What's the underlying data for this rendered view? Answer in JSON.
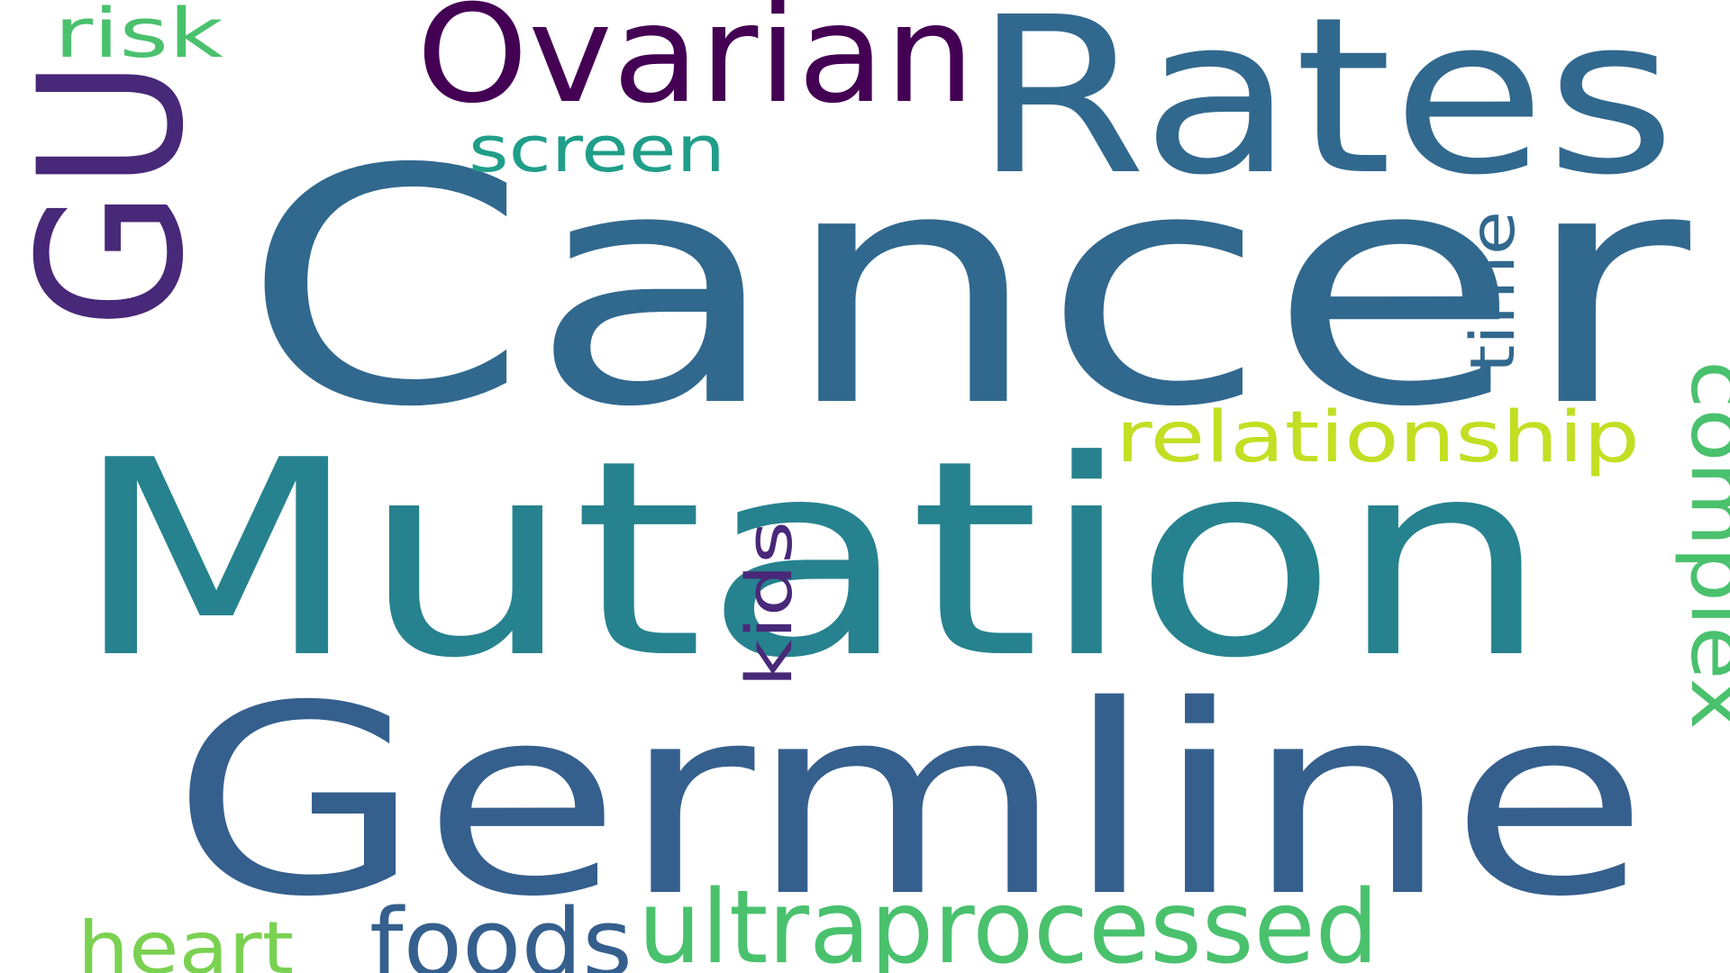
{
  "words": [
    {
      "id": "cancer",
      "text": "Cancer",
      "color": "#31688e"
    },
    {
      "id": "mutation",
      "text": "Mutation",
      "color": "#26828e"
    },
    {
      "id": "germline",
      "text": "Germline",
      "color": "#355f8d"
    },
    {
      "id": "rates",
      "text": "Rates",
      "color": "#31688e"
    },
    {
      "id": "gu",
      "text": "GU",
      "color": "#482878"
    },
    {
      "id": "ovarian",
      "text": "Ovarian",
      "color": "#440154"
    },
    {
      "id": "ultraprocessed",
      "text": "ultraprocessed",
      "color": "#4ac16d"
    },
    {
      "id": "relationship",
      "text": "relationship",
      "color": "#c2df23"
    },
    {
      "id": "complex",
      "text": "complex",
      "color": "#4ac16d"
    },
    {
      "id": "foods",
      "text": "foods",
      "color": "#355f8d"
    },
    {
      "id": "heart",
      "text": "heart",
      "color": "#7ad151"
    },
    {
      "id": "screen",
      "text": "screen",
      "color": "#1f9e89"
    },
    {
      "id": "kids",
      "text": "kids",
      "color": "#482878"
    },
    {
      "id": "time",
      "text": "time",
      "color": "#31688e"
    },
    {
      "id": "risk",
      "text": "risk",
      "color": "#4ac16d"
    }
  ]
}
